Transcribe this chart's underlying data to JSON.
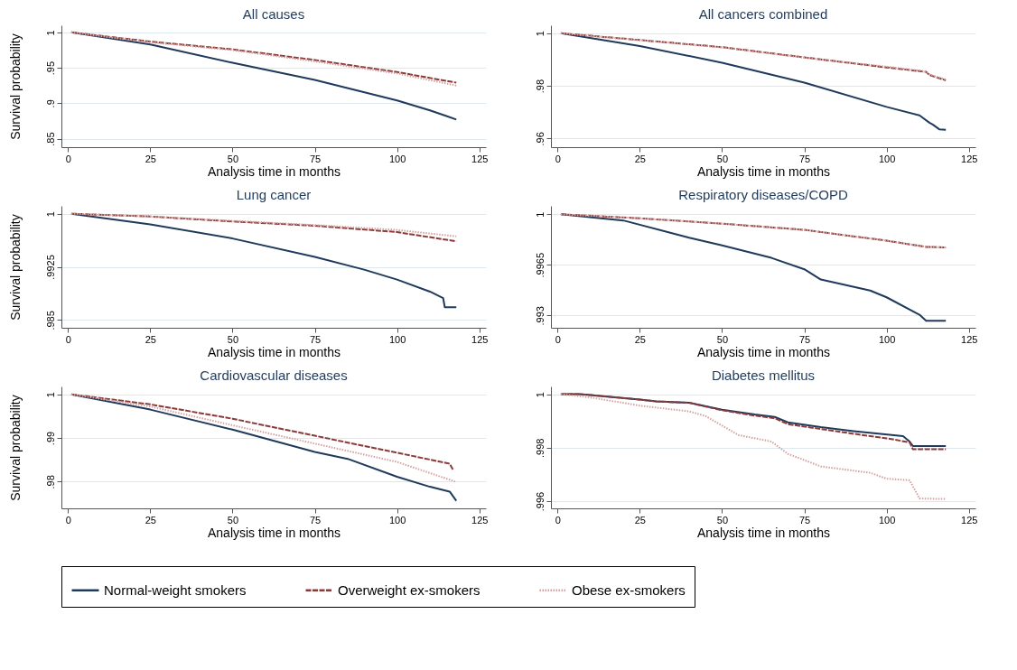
{
  "chart_data": [
    {
      "type": "line",
      "title": "All causes",
      "xlabel": "Analysis time in months",
      "ylabel": "Survival probability",
      "xlim": [
        -2,
        127
      ],
      "xticks": [
        0,
        25,
        50,
        75,
        100,
        125
      ],
      "ylim": [
        0.838,
        1.01
      ],
      "yticks": [
        {
          "value": 0.85,
          "label": ".85"
        },
        {
          "value": 0.9,
          "label": ".9"
        },
        {
          "value": 0.95,
          "label": ".95"
        },
        {
          "value": 1,
          "label": "1"
        }
      ],
      "grid": "y",
      "legend": "bottom",
      "series": [
        {
          "name": "Normal-weight smokers",
          "color": "#1f3a5a",
          "line_style": "solid",
          "x": [
            1,
            25,
            50,
            75,
            100,
            110,
            115,
            118
          ],
          "values": [
            1,
            0.983,
            0.957,
            0.933,
            0.904,
            0.89,
            0.882,
            0.877
          ]
        },
        {
          "name": "Overweight ex-smokers",
          "color": "#8b3a3a",
          "line_style": "dashed",
          "x": [
            1,
            25,
            50,
            75,
            100,
            118
          ],
          "values": [
            1,
            0.987,
            0.976,
            0.961,
            0.944,
            0.929
          ]
        },
        {
          "name": "Obese ex-smokers",
          "color": "#d4a0a0",
          "line_style": "dotted",
          "x": [
            1,
            25,
            50,
            75,
            100,
            118
          ],
          "values": [
            1,
            0.986,
            0.975,
            0.959,
            0.942,
            0.925
          ]
        }
      ]
    },
    {
      "type": "line",
      "title": "All cancers combined",
      "xlabel": "Analysis time in months",
      "xlim": [
        -2,
        127
      ],
      "xticks": [
        0,
        25,
        50,
        75,
        100,
        125
      ],
      "ylim": [
        0.9567,
        1.003
      ],
      "yticks": [
        {
          "value": 0.96,
          "label": ".96"
        },
        {
          "value": 0.98,
          "label": ".98"
        },
        {
          "value": 1,
          "label": "1"
        }
      ],
      "grid": "y",
      "series": [
        {
          "name": "Normal-weight smokers",
          "color": "#1f3a5a",
          "line_style": "solid",
          "x": [
            1,
            25,
            50,
            75,
            100,
            110,
            113,
            114,
            116,
            118
          ],
          "values": [
            1,
            0.9951,
            0.9888,
            0.9812,
            0.972,
            0.9688,
            0.966,
            0.9653,
            0.9635,
            0.9633
          ]
        },
        {
          "name": "Overweight ex-smokers",
          "color": "#8b3a3a",
          "line_style": "dashed",
          "x": [
            1,
            25,
            50,
            75,
            100,
            112,
            113,
            118
          ],
          "values": [
            1,
            0.9974,
            0.9947,
            0.9908,
            0.987,
            0.9853,
            0.9841,
            0.9821
          ]
        },
        {
          "name": "Obese ex-smokers",
          "color": "#d4a0a0",
          "line_style": "dotted",
          "x": [
            1,
            25,
            50,
            75,
            100,
            112,
            113,
            118
          ],
          "values": [
            1,
            0.9973,
            0.9946,
            0.9907,
            0.9873,
            0.9855,
            0.9843,
            0.9824
          ]
        }
      ]
    },
    {
      "type": "line",
      "title": "Lung cancer",
      "xlabel": "Analysis time in months",
      "ylabel": "Survival probability",
      "xlim": [
        -2,
        127
      ],
      "xticks": [
        0,
        25,
        50,
        75,
        100,
        125
      ],
      "ylim": [
        0.9839,
        1.0011
      ],
      "yticks": [
        {
          "value": 0.985,
          "label": ".985"
        },
        {
          "value": 0.9925,
          "label": ".9925"
        },
        {
          "value": 1,
          "label": "1"
        }
      ],
      "grid": "y",
      "series": [
        {
          "name": "Normal-weight smokers",
          "color": "#1f3a5a",
          "line_style": "solid",
          "x": [
            1,
            25,
            50,
            75,
            90,
            100,
            110,
            114,
            114.5,
            118
          ],
          "values": [
            1,
            0.9985,
            0.9965,
            0.9939,
            0.9921,
            0.9907,
            0.989,
            0.9881,
            0.9868,
            0.9868
          ]
        },
        {
          "name": "Overweight ex-smokers",
          "color": "#8b3a3a",
          "line_style": "dashed",
          "x": [
            1,
            25,
            50,
            75,
            100,
            118
          ],
          "values": [
            1,
            0.9996,
            0.9989,
            0.9983,
            0.9974,
            0.9961
          ]
        },
        {
          "name": "Obese ex-smokers",
          "color": "#d4a0a0",
          "line_style": "dotted",
          "x": [
            1,
            25,
            50,
            75,
            100,
            118
          ],
          "values": [
            1,
            0.9996,
            0.999,
            0.9984,
            0.9977,
            0.9968
          ]
        }
      ]
    },
    {
      "type": "line",
      "title": "Respiratory diseases/COPD",
      "xlabel": "Analysis time in months",
      "xlim": [
        -2,
        127
      ],
      "xticks": [
        0,
        25,
        50,
        75,
        100,
        125
      ],
      "ylim": [
        0.99214,
        1.00058
      ],
      "yticks": [
        {
          "value": 0.993,
          "label": ".993"
        },
        {
          "value": 0.9965,
          "label": ".9965"
        },
        {
          "value": 1,
          "label": "1"
        }
      ],
      "grid": "y",
      "series": [
        {
          "name": "Normal-weight smokers",
          "color": "#1f3a5a",
          "line_style": "solid",
          "x": [
            1,
            20,
            40,
            50,
            65,
            75,
            80,
            95,
            100,
            110,
            112,
            118
          ],
          "values": [
            1,
            0.99957,
            0.99838,
            0.99785,
            0.99698,
            0.99619,
            0.99548,
            0.99472,
            0.99425,
            0.99304,
            0.99263,
            0.99263
          ]
        },
        {
          "name": "Overweight ex-smokers",
          "color": "#8b3a3a",
          "line_style": "dashed",
          "x": [
            1,
            25,
            50,
            75,
            100,
            112,
            118
          ],
          "values": [
            1,
            0.99972,
            0.99935,
            0.99892,
            0.99817,
            0.99774,
            0.9977
          ]
        },
        {
          "name": "Obese ex-smokers",
          "color": "#d4a0a0",
          "line_style": "dotted",
          "x": [
            1,
            25,
            50,
            75,
            100,
            112,
            118
          ],
          "values": [
            1,
            0.99972,
            0.99935,
            0.99892,
            0.99817,
            0.99774,
            0.9977
          ]
        }
      ]
    },
    {
      "type": "line",
      "title": "Cardiovascular diseases",
      "xlabel": "Analysis time in months",
      "ylabel": "Survival probability",
      "xlim": [
        -2,
        127
      ],
      "xticks": [
        0,
        25,
        50,
        75,
        100,
        125
      ],
      "ylim": [
        0.97385,
        1.0018
      ],
      "yticks": [
        {
          "value": 0.98,
          "label": ".98"
        },
        {
          "value": 0.99,
          "label": ".99"
        },
        {
          "value": 1,
          "label": "1"
        }
      ],
      "grid": "y",
      "series": [
        {
          "name": "Normal-weight smokers",
          "color": "#1f3a5a",
          "line_style": "solid",
          "x": [
            1,
            25,
            50,
            75,
            85,
            100,
            110,
            116,
            118
          ],
          "values": [
            1,
            0.9965,
            0.9919,
            0.9868,
            0.9852,
            0.9811,
            0.9788,
            0.9777,
            0.9756
          ]
        },
        {
          "name": "Overweight ex-smokers",
          "color": "#8b3a3a",
          "line_style": "dashed",
          "x": [
            1,
            25,
            50,
            75,
            100,
            116,
            117
          ],
          "values": [
            1,
            0.9977,
            0.9944,
            0.9905,
            0.9866,
            0.9841,
            0.9827
          ]
        },
        {
          "name": "Obese ex-smokers",
          "color": "#d4a0a0",
          "line_style": "dotted",
          "x": [
            1,
            25,
            50,
            75,
            100,
            118
          ],
          "values": [
            1,
            0.9972,
            0.9929,
            0.9887,
            0.9845,
            0.9799
          ]
        }
      ]
    },
    {
      "type": "line",
      "title": "Diabetes mellitus",
      "xlabel": "Analysis time in months",
      "xlim": [
        -2,
        127
      ],
      "xticks": [
        0,
        25,
        50,
        75,
        100,
        125
      ],
      "ylim": [
        0.99573,
        1.00029
      ],
      "yticks": [
        {
          "value": 0.996,
          "label": ".996"
        },
        {
          "value": 0.998,
          "label": ".998"
        },
        {
          "value": 1,
          "label": "1"
        }
      ],
      "grid": "y",
      "series": [
        {
          "name": "Normal-weight smokers",
          "color": "#1f3a5a",
          "line_style": "solid",
          "x": [
            1,
            7,
            25,
            30,
            40,
            50,
            60,
            66,
            70,
            80,
            90,
            105,
            107,
            108,
            118
          ],
          "values": [
            1,
            1,
            0.9998,
            0.99973,
            0.99968,
            0.99942,
            0.99924,
            0.99915,
            0.99895,
            0.99877,
            0.99862,
            0.99843,
            0.99823,
            0.99806,
            0.99806
          ]
        },
        {
          "name": "Overweight ex-smokers",
          "color": "#8b3a3a",
          "line_style": "dashed",
          "x": [
            1,
            7,
            25,
            30,
            40,
            50,
            60,
            66,
            70,
            80,
            90,
            100,
            107,
            108,
            118
          ],
          "values": [
            1,
            1,
            0.9998,
            0.99973,
            0.99968,
            0.9994,
            0.9992,
            0.9991,
            0.99888,
            0.9987,
            0.99852,
            0.99835,
            0.9982,
            0.99794,
            0.99794
          ]
        },
        {
          "name": "Obese ex-smokers",
          "color": "#d4a0a0",
          "line_style": "dotted",
          "x": [
            1,
            10,
            25,
            40,
            45,
            55,
            65,
            70,
            80,
            95,
            100,
            107,
            110,
            118
          ],
          "values": [
            1,
            0.99988,
            0.99957,
            0.99936,
            0.99918,
            0.99847,
            0.99823,
            0.99777,
            0.9973,
            0.99706,
            0.99684,
            0.99678,
            0.9961,
            0.99608
          ]
        }
      ]
    }
  ]
}
